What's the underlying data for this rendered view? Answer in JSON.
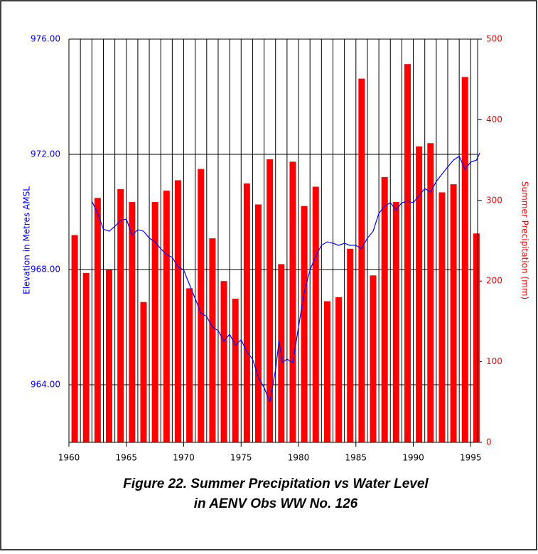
{
  "chart_data": {
    "type": "combo",
    "title": [
      "Figure 22. Summer Precipitation vs Water Level",
      "in AENV Obs WW No. 126"
    ],
    "ylabel": "Elevation in Metres AMSL",
    "y2label": "Summer Precipitation (mm)",
    "xlim": [
      1960,
      1995.6
    ],
    "xticks": [
      1960,
      1965,
      1970,
      1975,
      1980,
      1985,
      1990,
      1995
    ],
    "ylim": [
      962,
      976
    ],
    "yticks": [
      {
        "value": 964,
        "label": "964.00"
      },
      {
        "value": 968,
        "label": "968.00"
      },
      {
        "value": 972,
        "label": "972.00"
      },
      {
        "value": 976,
        "label": "976.00"
      }
    ],
    "y2lim": [
      0,
      500
    ],
    "y2ticks": [
      0,
      100,
      200,
      300,
      400,
      500
    ],
    "grid": true,
    "series": [
      {
        "type": "bar",
        "axis": "y2",
        "color": "#ff0000",
        "x": [
          1960,
          1961,
          1962,
          1963,
          1964,
          1965,
          1966,
          1967,
          1968,
          1969,
          1970,
          1971,
          1972,
          1973,
          1974,
          1975,
          1976,
          1977,
          1978,
          1979,
          1980,
          1981,
          1982,
          1983,
          1984,
          1985,
          1986,
          1987,
          1988,
          1989,
          1990,
          1991,
          1992,
          1993,
          1994,
          1995
        ],
        "values": [
          257,
          210,
          303,
          214,
          314,
          298,
          174,
          298,
          312,
          325,
          191,
          339,
          253,
          200,
          178,
          321,
          295,
          351,
          221,
          348,
          293,
          317,
          175,
          180,
          240,
          451,
          207,
          329,
          298,
          469,
          367,
          371,
          310,
          320,
          453,
          259
        ]
      },
      {
        "type": "line",
        "color": "#0000ff",
        "x": [
          1962,
          1962.5,
          1963,
          1963.5,
          1964,
          1964.5,
          1965,
          1965.5,
          1966,
          1966.5,
          1967,
          1967.5,
          1968,
          1968.5,
          1969,
          1969.5,
          1970,
          1970.5,
          1971,
          1971.5,
          1972,
          1972.5,
          1973,
          1973.5,
          1974,
          1974.5,
          1975,
          1975.5,
          1976,
          1976.5,
          1977,
          1977.5,
          1978,
          1978.3,
          1978.6,
          1979,
          1979.5,
          1980,
          1980.5,
          1981,
          1981.5,
          1982,
          1982.5,
          1983,
          1983.5,
          1984,
          1984.5,
          1985,
          1985.5,
          1986,
          1986.5,
          1987,
          1987.5,
          1988,
          1988.5,
          1989,
          1989.5,
          1990,
          1990.5,
          1991,
          1991.5,
          1992,
          1992.5,
          1993,
          1993.5,
          1994,
          1994.5,
          1995,
          1995.5,
          1995.8
        ],
        "values": [
          970.37,
          969.95,
          969.4,
          969.33,
          969.5,
          969.7,
          969.75,
          969.2,
          969.38,
          969.33,
          969.09,
          968.96,
          968.72,
          968.52,
          968.42,
          968.1,
          967.98,
          967.48,
          966.99,
          966.49,
          966.37,
          966.0,
          965.88,
          965.51,
          965.75,
          965.38,
          965.56,
          965.14,
          964.89,
          964.27,
          963.9,
          963.41,
          964.52,
          965.51,
          964.77,
          964.89,
          964.77,
          966.0,
          967.23,
          967.98,
          968.47,
          968.84,
          968.96,
          968.91,
          968.84,
          968.91,
          968.84,
          968.84,
          968.72,
          969.09,
          969.33,
          969.95,
          970.2,
          970.32,
          970.07,
          970.32,
          970.37,
          970.32,
          970.57,
          970.81,
          970.69,
          971.06,
          971.31,
          971.56,
          971.8,
          971.93,
          971.48,
          971.73,
          971.8,
          972.05
        ]
      }
    ]
  }
}
